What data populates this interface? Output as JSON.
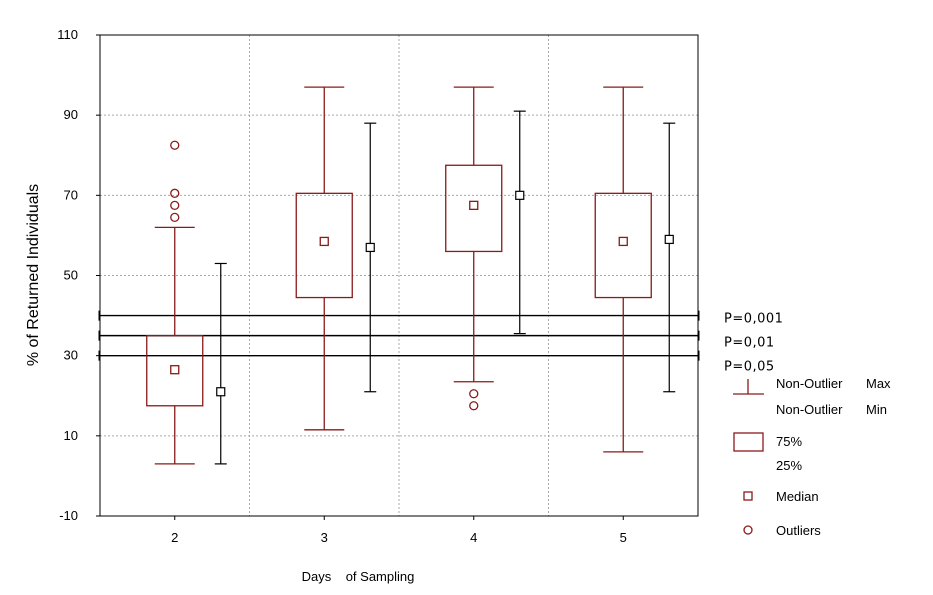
{
  "chart_data": {
    "type": "boxplot",
    "xlabel": "Days    of Sampling",
    "ylabel": "% of Returned Individuals",
    "ylim": [
      -10,
      110
    ],
    "yticks": [
      "-10",
      "10",
      "30",
      "50",
      "70",
      "90",
      "110"
    ],
    "categories": [
      "2",
      "3",
      "4",
      "5"
    ],
    "grid": true,
    "colors": {
      "box": "#8b1a1a",
      "reference": "#000000",
      "grid": "#aaaaaa"
    },
    "boxes": [
      {
        "category": "2",
        "whisker_min": 3,
        "q1": 17.5,
        "median": 26.5,
        "q3": 35,
        "whisker_max": 62,
        "outliers": [
          64.5,
          67.5,
          70.5,
          82.5
        ]
      },
      {
        "category": "3",
        "whisker_min": 11.5,
        "q1": 44.5,
        "median": 58.5,
        "q3": 70.5,
        "whisker_max": 97,
        "outliers": []
      },
      {
        "category": "4",
        "whisker_min": 23.5,
        "q1": 56,
        "median": 67.5,
        "q3": 77.5,
        "whisker_max": 97,
        "outliers": [
          17.5,
          20.5
        ]
      },
      {
        "category": "5",
        "whisker_min": 6,
        "q1": 44.5,
        "median": 58.5,
        "q3": 70.5,
        "whisker_max": 97,
        "outliers": []
      }
    ],
    "reference_intervals": [
      {
        "category": "2",
        "min": 3,
        "center": 21,
        "max": 53
      },
      {
        "category": "3",
        "min": 21,
        "center": 57,
        "max": 88
      },
      {
        "category": "4",
        "min": 35.5,
        "center": 70,
        "max": 91
      },
      {
        "category": "5",
        "min": 21,
        "center": 59,
        "max": 88
      }
    ],
    "significance_lines": [
      {
        "label": "P=0,001",
        "value": 40
      },
      {
        "label": "P=0,01",
        "value": 35
      },
      {
        "label": "P=0,05",
        "value": 30
      }
    ],
    "legend": {
      "placement": "right",
      "whisker_max": "Non-Outlier",
      "whisker_max_suffix": "Max",
      "whisker_min": "Non-Outlier",
      "whisker_min_suffix": "Min",
      "box_upper": "75%",
      "box_lower": "25%",
      "median": "Median",
      "outliers": "Outliers"
    }
  }
}
